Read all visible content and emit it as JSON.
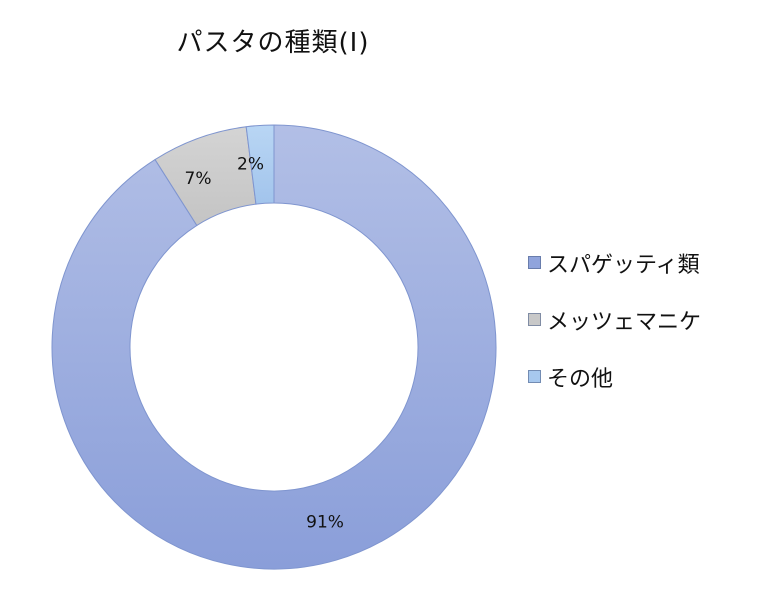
{
  "chart_data": {
    "type": "pie",
    "title": "パスタの種類(I)",
    "categories": [
      "スパゲッティ類",
      "メッツェマニケ",
      "その他"
    ],
    "values": [
      91,
      7,
      2
    ],
    "labels": [
      "91%",
      "7%",
      "2%"
    ],
    "colors": [
      "#90a4dc",
      "#c8c8c8",
      "#a7c8ee"
    ],
    "legend_position": "right",
    "donut": true
  }
}
